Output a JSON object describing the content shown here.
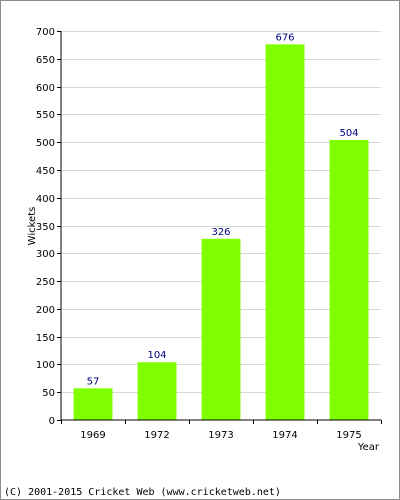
{
  "chart_data": {
    "type": "bar",
    "categories": [
      "1969",
      "1972",
      "1973",
      "1974",
      "1975"
    ],
    "values": [
      57,
      104,
      326,
      676,
      504
    ],
    "value_labels": [
      "57",
      "104",
      "326",
      "676",
      "504"
    ],
    "title": "",
    "xlabel": "Year",
    "ylabel": "Wickets",
    "ylim": [
      0,
      700
    ],
    "yticks": [
      "0",
      "50",
      "100",
      "150",
      "200",
      "250",
      "300",
      "350",
      "400",
      "450",
      "500",
      "550",
      "600",
      "650",
      "700"
    ],
    "grid": true,
    "bar_color": "#80ff00",
    "label_color": "#000080",
    "grid_color": "#d9d9d9"
  },
  "footer": {
    "copyright": "(C) 2001-2015 Cricket Web (www.cricketweb.net)"
  }
}
